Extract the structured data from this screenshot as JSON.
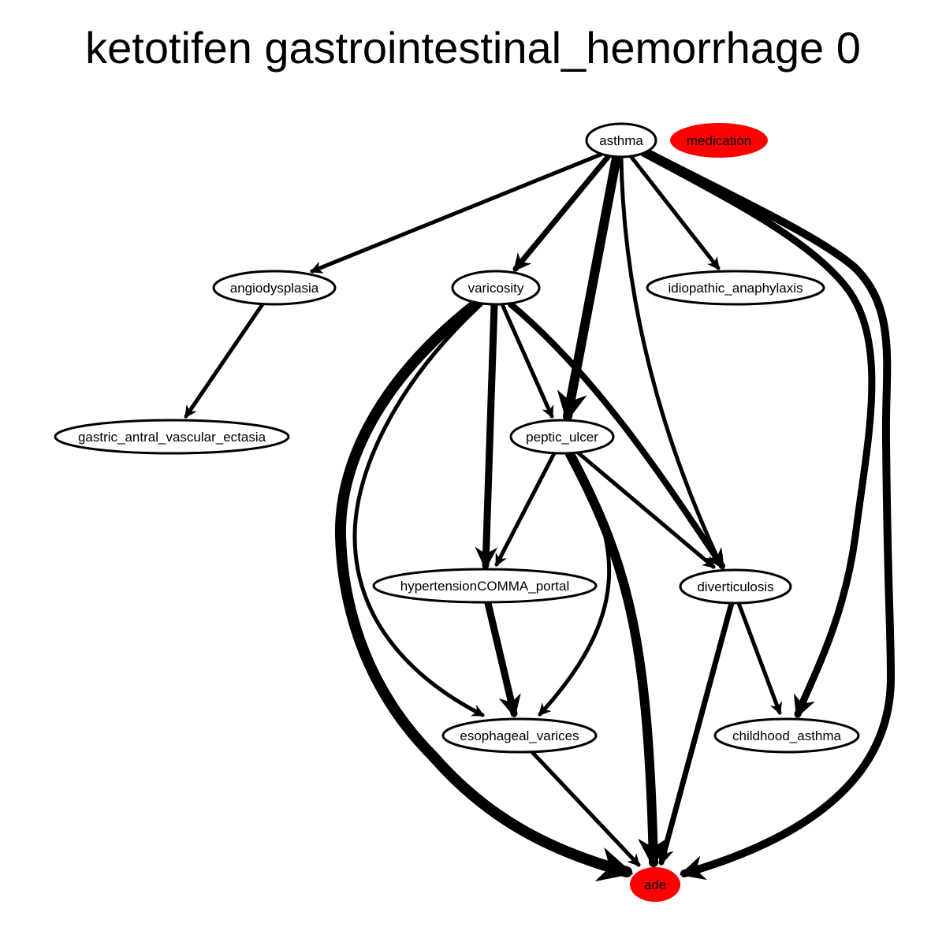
{
  "title": "ketotifen gastrointestinal_hemorrhage 0",
  "colors": {
    "highlight": "#ff0000",
    "node_fill": "#ffffff",
    "edge": "#000000"
  },
  "nodes": [
    {
      "id": "asthma",
      "label": "asthma"
    },
    {
      "id": "medication",
      "label": "medication",
      "highlight": true
    },
    {
      "id": "angiodysplasia",
      "label": "angiodysplasia"
    },
    {
      "id": "varicosity",
      "label": "varicosity"
    },
    {
      "id": "idiopathic_anaphylaxis",
      "label": "idiopathic_anaphylaxis"
    },
    {
      "id": "gastric_antral_vascular_ectasia",
      "label": "gastric_antral_vascular_ectasia"
    },
    {
      "id": "peptic_ulcer",
      "label": "peptic_ulcer"
    },
    {
      "id": "hypertensionCOMMA_portal",
      "label": "hypertensionCOMMA_portal"
    },
    {
      "id": "diverticulosis",
      "label": "diverticulosis"
    },
    {
      "id": "esophageal_varices",
      "label": "esophageal_varices"
    },
    {
      "id": "childhood_asthma",
      "label": "childhood_asthma"
    },
    {
      "id": "ade",
      "label": "ade",
      "highlight": true
    }
  ],
  "edges": [
    {
      "from": "asthma",
      "to": "angiodysplasia"
    },
    {
      "from": "asthma",
      "to": "varicosity"
    },
    {
      "from": "asthma",
      "to": "peptic_ulcer"
    },
    {
      "from": "asthma",
      "to": "idiopathic_anaphylaxis"
    },
    {
      "from": "asthma",
      "to": "diverticulosis"
    },
    {
      "from": "asthma",
      "to": "childhood_asthma"
    },
    {
      "from": "asthma",
      "to": "ade"
    },
    {
      "from": "angiodysplasia",
      "to": "gastric_antral_vascular_ectasia"
    },
    {
      "from": "varicosity",
      "to": "peptic_ulcer"
    },
    {
      "from": "varicosity",
      "to": "hypertensionCOMMA_portal"
    },
    {
      "from": "varicosity",
      "to": "diverticulosis"
    },
    {
      "from": "varicosity",
      "to": "esophageal_varices"
    },
    {
      "from": "varicosity",
      "to": "ade"
    },
    {
      "from": "peptic_ulcer",
      "to": "hypertensionCOMMA_portal"
    },
    {
      "from": "peptic_ulcer",
      "to": "diverticulosis"
    },
    {
      "from": "peptic_ulcer",
      "to": "esophageal_varices"
    },
    {
      "from": "peptic_ulcer",
      "to": "ade"
    },
    {
      "from": "hypertensionCOMMA_portal",
      "to": "esophageal_varices"
    },
    {
      "from": "diverticulosis",
      "to": "childhood_asthma"
    },
    {
      "from": "diverticulosis",
      "to": "ade"
    },
    {
      "from": "esophageal_varices",
      "to": "ade"
    }
  ]
}
